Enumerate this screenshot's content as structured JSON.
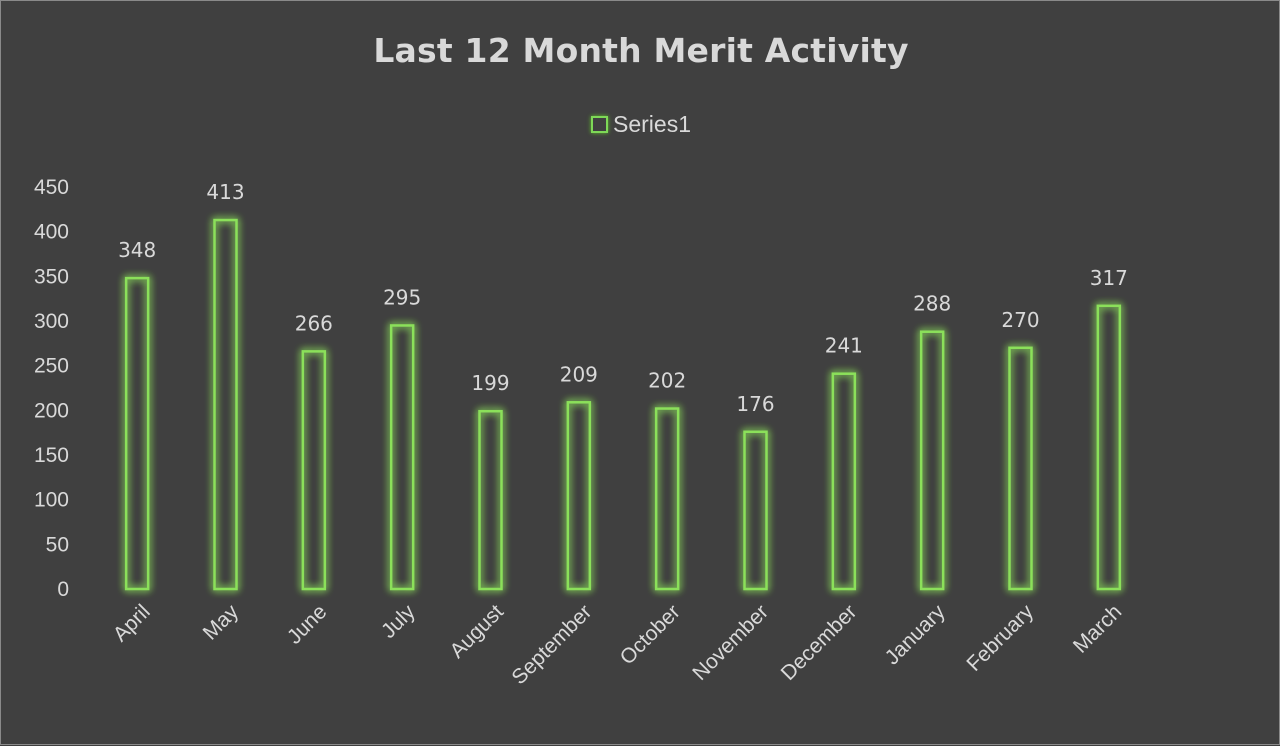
{
  "chart_data": {
    "type": "bar",
    "title": "Last 12 Month Merit Activity",
    "categories": [
      "April",
      "May",
      "June",
      "July",
      "August",
      "September",
      "October",
      "November",
      "December",
      "January",
      "February",
      "March"
    ],
    "series": [
      {
        "name": "Series1",
        "values": [
          348,
          413,
          266,
          295,
          199,
          209,
          202,
          176,
          241,
          288,
          270,
          317
        ],
        "color": "#8be05a"
      }
    ],
    "ylim": [
      0,
      450
    ],
    "yticks": [
      0,
      50,
      100,
      150,
      200,
      250,
      300,
      350,
      400,
      450
    ],
    "xlabel": "",
    "ylabel": "",
    "grid": false,
    "legend": "top-center",
    "data_labels": true,
    "background": "#404040",
    "text_color": "#d9d9d9"
  }
}
